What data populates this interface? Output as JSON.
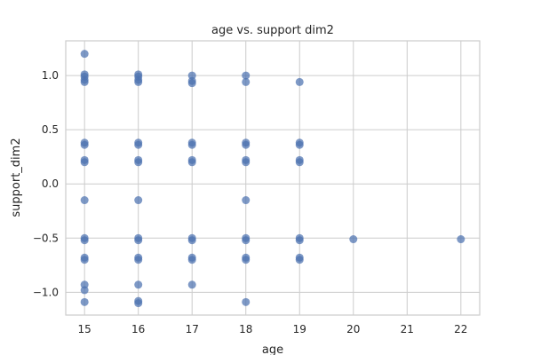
{
  "chart_data": {
    "type": "scatter",
    "title": "age vs. support dim2",
    "xlabel": "age",
    "ylabel": "support_dim2",
    "xlim": [
      14.65,
      22.35
    ],
    "ylim": [
      -1.21,
      1.32
    ],
    "xticks": [
      15,
      16,
      17,
      18,
      19,
      20,
      21,
      22
    ],
    "yticks": [
      -1.0,
      -0.5,
      0.0,
      0.5,
      1.0
    ],
    "ytick_labels": [
      "−1.0",
      "−0.5",
      "0.0",
      "0.5",
      "1.0"
    ],
    "grid": true,
    "marker_color": "#4c72b0",
    "points": [
      [
        15,
        1.2
      ],
      [
        15,
        1.01
      ],
      [
        15,
        0.99
      ],
      [
        15,
        0.96
      ],
      [
        15,
        0.94
      ],
      [
        15,
        0.38
      ],
      [
        15,
        0.36
      ],
      [
        15,
        0.22
      ],
      [
        15,
        0.2
      ],
      [
        15,
        -0.15
      ],
      [
        15,
        -0.5
      ],
      [
        15,
        -0.52
      ],
      [
        15,
        -0.68
      ],
      [
        15,
        -0.7
      ],
      [
        15,
        -0.93
      ],
      [
        15,
        -0.98
      ],
      [
        15,
        -1.09
      ],
      [
        16,
        1.01
      ],
      [
        16,
        0.99
      ],
      [
        16,
        0.96
      ],
      [
        16,
        0.94
      ],
      [
        16,
        0.38
      ],
      [
        16,
        0.36
      ],
      [
        16,
        0.22
      ],
      [
        16,
        0.2
      ],
      [
        16,
        -0.15
      ],
      [
        16,
        -0.5
      ],
      [
        16,
        -0.52
      ],
      [
        16,
        -0.68
      ],
      [
        16,
        -0.7
      ],
      [
        16,
        -0.93
      ],
      [
        16,
        -1.08
      ],
      [
        16,
        -1.1
      ],
      [
        17,
        1.0
      ],
      [
        17,
        0.95
      ],
      [
        17,
        0.93
      ],
      [
        17,
        0.38
      ],
      [
        17,
        0.36
      ],
      [
        17,
        0.22
      ],
      [
        17,
        0.2
      ],
      [
        17,
        -0.5
      ],
      [
        17,
        -0.52
      ],
      [
        17,
        -0.68
      ],
      [
        17,
        -0.7
      ],
      [
        17,
        -0.93
      ],
      [
        18,
        1.0
      ],
      [
        18,
        0.94
      ],
      [
        18,
        0.38
      ],
      [
        18,
        0.36
      ],
      [
        18,
        0.22
      ],
      [
        18,
        0.2
      ],
      [
        18,
        -0.15
      ],
      [
        18,
        -0.5
      ],
      [
        18,
        -0.52
      ],
      [
        18,
        -0.68
      ],
      [
        18,
        -0.7
      ],
      [
        18,
        -1.09
      ],
      [
        19,
        0.94
      ],
      [
        19,
        0.38
      ],
      [
        19,
        0.36
      ],
      [
        19,
        0.22
      ],
      [
        19,
        0.2
      ],
      [
        19,
        -0.5
      ],
      [
        19,
        -0.52
      ],
      [
        19,
        -0.68
      ],
      [
        19,
        -0.7
      ],
      [
        20,
        -0.51
      ],
      [
        22,
        -0.51
      ]
    ]
  }
}
